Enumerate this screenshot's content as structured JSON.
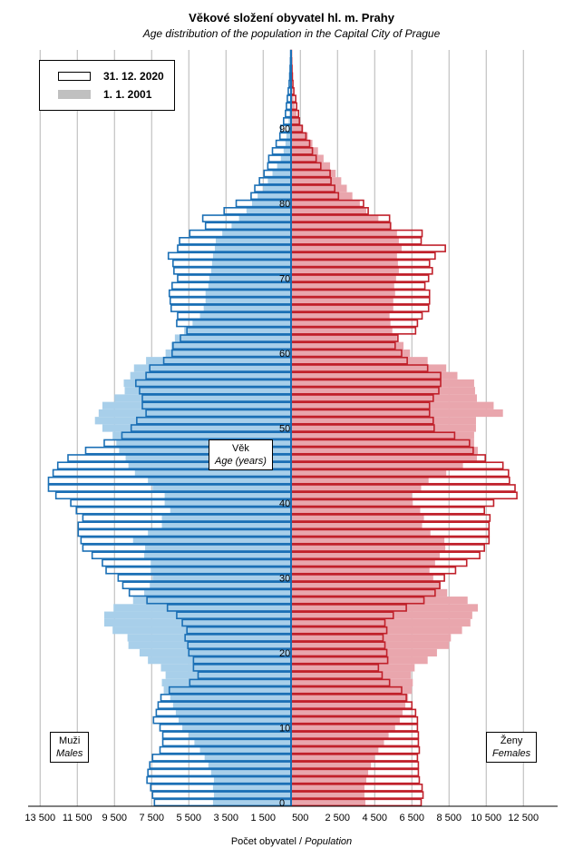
{
  "chart_data": {
    "type": "bar",
    "subtype": "population-pyramid",
    "title": "Věkové složení obyvatel hl. m. Prahy",
    "subtitle": "Age distribution of the population  in the Capital City of Prague",
    "xlabel_cs": "Počet obyvatel",
    "xlabel_en": "Population",
    "ylabel_cs": "Věk",
    "ylabel_en": "Age (years)",
    "left_label_cs": "Muži",
    "left_label_en": "Males",
    "right_label_cs": "Ženy",
    "right_label_en": "Females",
    "x_tick_labels_left": [
      "13 500",
      "11 500",
      "9 500",
      "7 500",
      "5 500",
      "3 500",
      "1 500"
    ],
    "x_tick_labels_right": [
      "500",
      "2 500",
      "4 500",
      "6 500",
      "8 500",
      "10 500",
      "12 500"
    ],
    "x_ticks_left": [
      13500,
      11500,
      9500,
      7500,
      5500,
      3500,
      1500
    ],
    "x_ticks_right": [
      500,
      2500,
      4500,
      6500,
      8500,
      10500,
      12500
    ],
    "y_ticks": [
      0,
      10,
      20,
      30,
      40,
      50,
      60,
      70,
      80,
      90
    ],
    "ages": [
      0,
      1,
      2,
      3,
      4,
      5,
      6,
      7,
      8,
      9,
      10,
      11,
      12,
      13,
      14,
      15,
      16,
      17,
      18,
      19,
      20,
      21,
      22,
      23,
      24,
      25,
      26,
      27,
      28,
      29,
      30,
      31,
      32,
      33,
      34,
      35,
      36,
      37,
      38,
      39,
      40,
      41,
      42,
      43,
      44,
      45,
      46,
      47,
      48,
      49,
      50,
      51,
      52,
      53,
      54,
      55,
      56,
      57,
      58,
      59,
      60,
      61,
      62,
      63,
      64,
      65,
      66,
      67,
      68,
      69,
      70,
      71,
      72,
      73,
      74,
      75,
      76,
      77,
      78,
      79,
      80,
      81,
      82,
      83,
      84,
      85,
      86,
      87,
      88,
      89,
      90,
      91,
      92,
      93,
      94,
      95,
      96,
      97,
      98,
      99,
      100
    ],
    "legend": [
      {
        "label": "31. 12. 2020",
        "style": "outline"
      },
      {
        "label": "1. 1. 2001",
        "style": "filled"
      }
    ],
    "colors": {
      "male_2001": "#a8cfea",
      "female_2001": "#e9a6ad",
      "male_2020": "#1a6fb5",
      "female_2020": "#c0202a",
      "grid": "#b5b5b5",
      "axis": "#1a6fb5"
    },
    "series": [
      {
        "name": "31. 12. 2020",
        "side": "male",
        "values": [
          7350,
          7450,
          7550,
          7750,
          7700,
          7600,
          7450,
          7050,
          6900,
          6900,
          7050,
          7400,
          7250,
          7150,
          7000,
          6550,
          5450,
          5000,
          5250,
          5250,
          5500,
          5550,
          5700,
          5600,
          5850,
          6150,
          6650,
          7750,
          8700,
          9050,
          9300,
          9950,
          10150,
          10700,
          11200,
          11300,
          11450,
          11450,
          11200,
          11550,
          11850,
          12650,
          13050,
          13050,
          12800,
          12550,
          12000,
          11050,
          10050,
          9100,
          8600,
          8300,
          7800,
          8000,
          8000,
          8150,
          8350,
          7800,
          7600,
          6850,
          6400,
          6350,
          5950,
          5600,
          6150,
          6100,
          6450,
          6500,
          6550,
          6400,
          6100,
          6300,
          6350,
          6600,
          6100,
          6000,
          5450,
          4600,
          4750,
          3600,
          2950,
          2150,
          1950,
          1700,
          1450,
          1250,
          1200,
          1000,
          800,
          600,
          550,
          400,
          300,
          250,
          200,
          150,
          100,
          70,
          50,
          30,
          20
        ]
      },
      {
        "name": "31. 12. 2020",
        "side": "female",
        "values": [
          7000,
          7100,
          7050,
          6900,
          6850,
          6850,
          6800,
          6900,
          6850,
          6850,
          6800,
          6800,
          6700,
          6500,
          6200,
          5950,
          5300,
          4900,
          4700,
          5200,
          5150,
          5050,
          4950,
          5150,
          5050,
          5500,
          6200,
          7150,
          7750,
          8000,
          8250,
          8850,
          9450,
          10150,
          10400,
          10650,
          10650,
          10650,
          10700,
          10400,
          10900,
          12150,
          12050,
          11750,
          11700,
          11400,
          10450,
          9800,
          9600,
          8800,
          7700,
          7650,
          7450,
          7450,
          7650,
          7950,
          8050,
          8050,
          7350,
          6250,
          5950,
          5600,
          5750,
          6700,
          6800,
          7050,
          7400,
          7450,
          7450,
          7200,
          7400,
          7600,
          7450,
          7750,
          8300,
          7000,
          7050,
          5350,
          5300,
          4150,
          3900,
          2550,
          2350,
          2150,
          2100,
          1600,
          1350,
          1150,
          1000,
          800,
          600,
          450,
          400,
          300,
          250,
          150,
          100,
          70,
          50,
          30,
          20
        ]
      },
      {
        "name": "1. 1. 2001",
        "side": "male",
        "values": [
          4200,
          4150,
          4200,
          4150,
          4300,
          4450,
          4650,
          4900,
          5200,
          5500,
          5850,
          6050,
          6200,
          6350,
          6500,
          6850,
          6950,
          6750,
          7000,
          7700,
          8150,
          8750,
          8800,
          9600,
          10050,
          10050,
          9550,
          8500,
          7900,
          7600,
          7450,
          7550,
          7550,
          7900,
          7850,
          8500,
          7700,
          6950,
          6950,
          6500,
          6800,
          6800,
          7450,
          7700,
          8400,
          8750,
          8900,
          9250,
          9400,
          9600,
          10150,
          10550,
          10350,
          10150,
          9500,
          8950,
          9000,
          8650,
          8450,
          7800,
          6750,
          6450,
          6250,
          5750,
          5300,
          4900,
          4700,
          4600,
          4600,
          4450,
          4400,
          4300,
          4250,
          4200,
          4100,
          4050,
          3700,
          3200,
          2800,
          2400,
          2100,
          1800,
          1500,
          1250,
          1000,
          750,
          550,
          400,
          300,
          250,
          180,
          130,
          90,
          60,
          40,
          25,
          15,
          10,
          5,
          3,
          2
        ]
      },
      {
        "name": "1. 1. 2001",
        "side": "female",
        "values": [
          4000,
          3950,
          3950,
          4050,
          4150,
          4300,
          4500,
          4700,
          5000,
          5250,
          5600,
          5850,
          6000,
          6150,
          6300,
          6500,
          6550,
          6450,
          6650,
          7350,
          7850,
          8500,
          8600,
          9200,
          9650,
          9750,
          10050,
          9500,
          8400,
          8050,
          7650,
          7450,
          7750,
          8000,
          8300,
          8250,
          7500,
          7050,
          7150,
          6950,
          6550,
          6500,
          7000,
          7400,
          8350,
          9250,
          10000,
          10050,
          9850,
          9850,
          9950,
          9950,
          11400,
          10900,
          10000,
          9900,
          9850,
          8950,
          8350,
          7350,
          6400,
          6050,
          5700,
          5450,
          5350,
          5300,
          5500,
          5500,
          5600,
          5550,
          5650,
          5800,
          5750,
          5700,
          5950,
          5800,
          5700,
          5400,
          4700,
          4050,
          3700,
          3300,
          3000,
          2700,
          2400,
          2100,
          1750,
          1450,
          1150,
          900,
          650,
          450,
          300,
          200,
          130,
          80,
          50,
          30,
          20,
          10,
          5
        ]
      }
    ]
  }
}
